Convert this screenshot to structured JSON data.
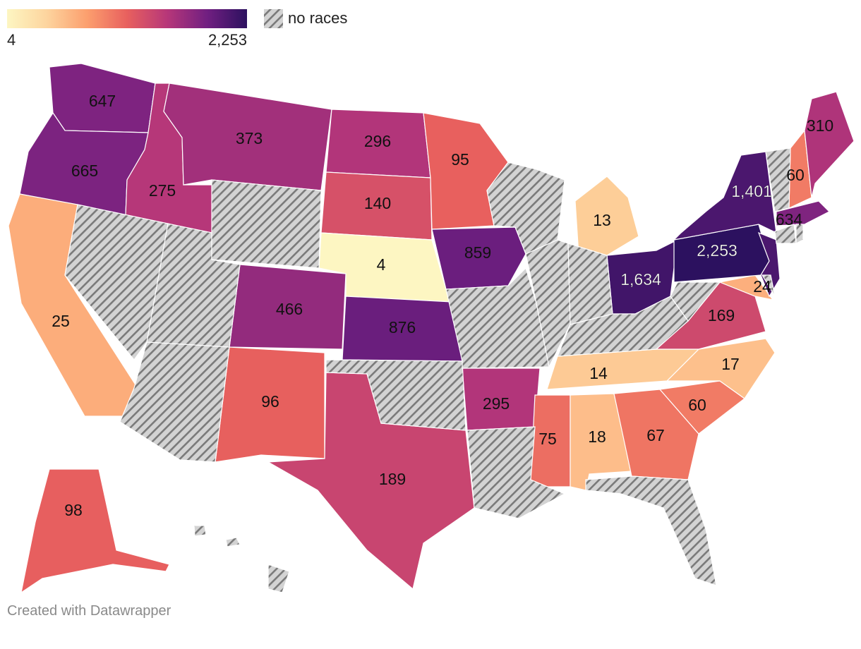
{
  "legend": {
    "min_label": "4",
    "max_label": "2,253",
    "no_data_label": "no races",
    "gradient_colors": [
      "#fdf6c2",
      "#fdd49e",
      "#fc9f6e",
      "#e8605e",
      "#b73779",
      "#711f81",
      "#2c115f"
    ]
  },
  "footer": {
    "credit": "Created with Datawrapper"
  },
  "colors": {
    "no_data_fill": "#d3d3d3",
    "no_data_stripe": "#7a7a7a",
    "border": "#ffffff"
  },
  "chart_data": {
    "type": "choropleth",
    "scale": {
      "min": 4,
      "max": 2253
    },
    "states": [
      {
        "code": "WA",
        "value": 647,
        "label": "647"
      },
      {
        "code": "OR",
        "value": 665,
        "label": "665"
      },
      {
        "code": "CA",
        "value": 25,
        "label": "25"
      },
      {
        "code": "ID",
        "value": 275,
        "label": "275"
      },
      {
        "code": "MT",
        "value": 373,
        "label": "373"
      },
      {
        "code": "ND",
        "value": 296,
        "label": "296"
      },
      {
        "code": "SD",
        "value": 140,
        "label": "140"
      },
      {
        "code": "MN",
        "value": 95,
        "label": "95"
      },
      {
        "code": "NE",
        "value": 4,
        "label": "4"
      },
      {
        "code": "CO",
        "value": 466,
        "label": "466"
      },
      {
        "code": "KS",
        "value": 876,
        "label": "876"
      },
      {
        "code": "IA",
        "value": 859,
        "label": "859"
      },
      {
        "code": "NM",
        "value": 96,
        "label": "96"
      },
      {
        "code": "TX",
        "value": 189,
        "label": "189"
      },
      {
        "code": "AR",
        "value": 295,
        "label": "295"
      },
      {
        "code": "MS",
        "value": 75,
        "label": "75"
      },
      {
        "code": "AL",
        "value": 18,
        "label": "18"
      },
      {
        "code": "GA",
        "value": 67,
        "label": "67"
      },
      {
        "code": "SC",
        "value": 60,
        "label": "60"
      },
      {
        "code": "NC",
        "value": 17,
        "label": "17"
      },
      {
        "code": "TN",
        "value": 14,
        "label": "14"
      },
      {
        "code": "VA",
        "value": 169,
        "label": "169"
      },
      {
        "code": "MD",
        "value": 24,
        "label": "24"
      },
      {
        "code": "MI",
        "value": 13,
        "label": "13"
      },
      {
        "code": "OH",
        "value": 1634,
        "label": "1,634"
      },
      {
        "code": "PA",
        "value": 2253,
        "label": "2,253"
      },
      {
        "code": "NY",
        "value": 1401,
        "label": "1,401"
      },
      {
        "code": "NJ",
        "value": 1401,
        "label": ""
      },
      {
        "code": "MA",
        "value": 634,
        "label": "634"
      },
      {
        "code": "NH",
        "value": 60,
        "label": "60"
      },
      {
        "code": "ME",
        "value": 310,
        "label": "310"
      },
      {
        "code": "AK",
        "value": 98,
        "label": "98"
      },
      {
        "code": "NV",
        "value": null,
        "label": ""
      },
      {
        "code": "UT",
        "value": null,
        "label": ""
      },
      {
        "code": "WY",
        "value": null,
        "label": ""
      },
      {
        "code": "AZ",
        "value": null,
        "label": ""
      },
      {
        "code": "OK",
        "value": null,
        "label": ""
      },
      {
        "code": "MO",
        "value": null,
        "label": ""
      },
      {
        "code": "LA",
        "value": null,
        "label": ""
      },
      {
        "code": "WI",
        "value": null,
        "label": ""
      },
      {
        "code": "IL",
        "value": null,
        "label": ""
      },
      {
        "code": "IN",
        "value": null,
        "label": ""
      },
      {
        "code": "KY",
        "value": null,
        "label": ""
      },
      {
        "code": "WV",
        "value": null,
        "label": ""
      },
      {
        "code": "FL",
        "value": null,
        "label": ""
      },
      {
        "code": "VT",
        "value": null,
        "label": ""
      },
      {
        "code": "CT",
        "value": null,
        "label": ""
      },
      {
        "code": "RI",
        "value": null,
        "label": ""
      },
      {
        "code": "DE",
        "value": null,
        "label": ""
      },
      {
        "code": "HI",
        "value": null,
        "label": ""
      }
    ]
  }
}
